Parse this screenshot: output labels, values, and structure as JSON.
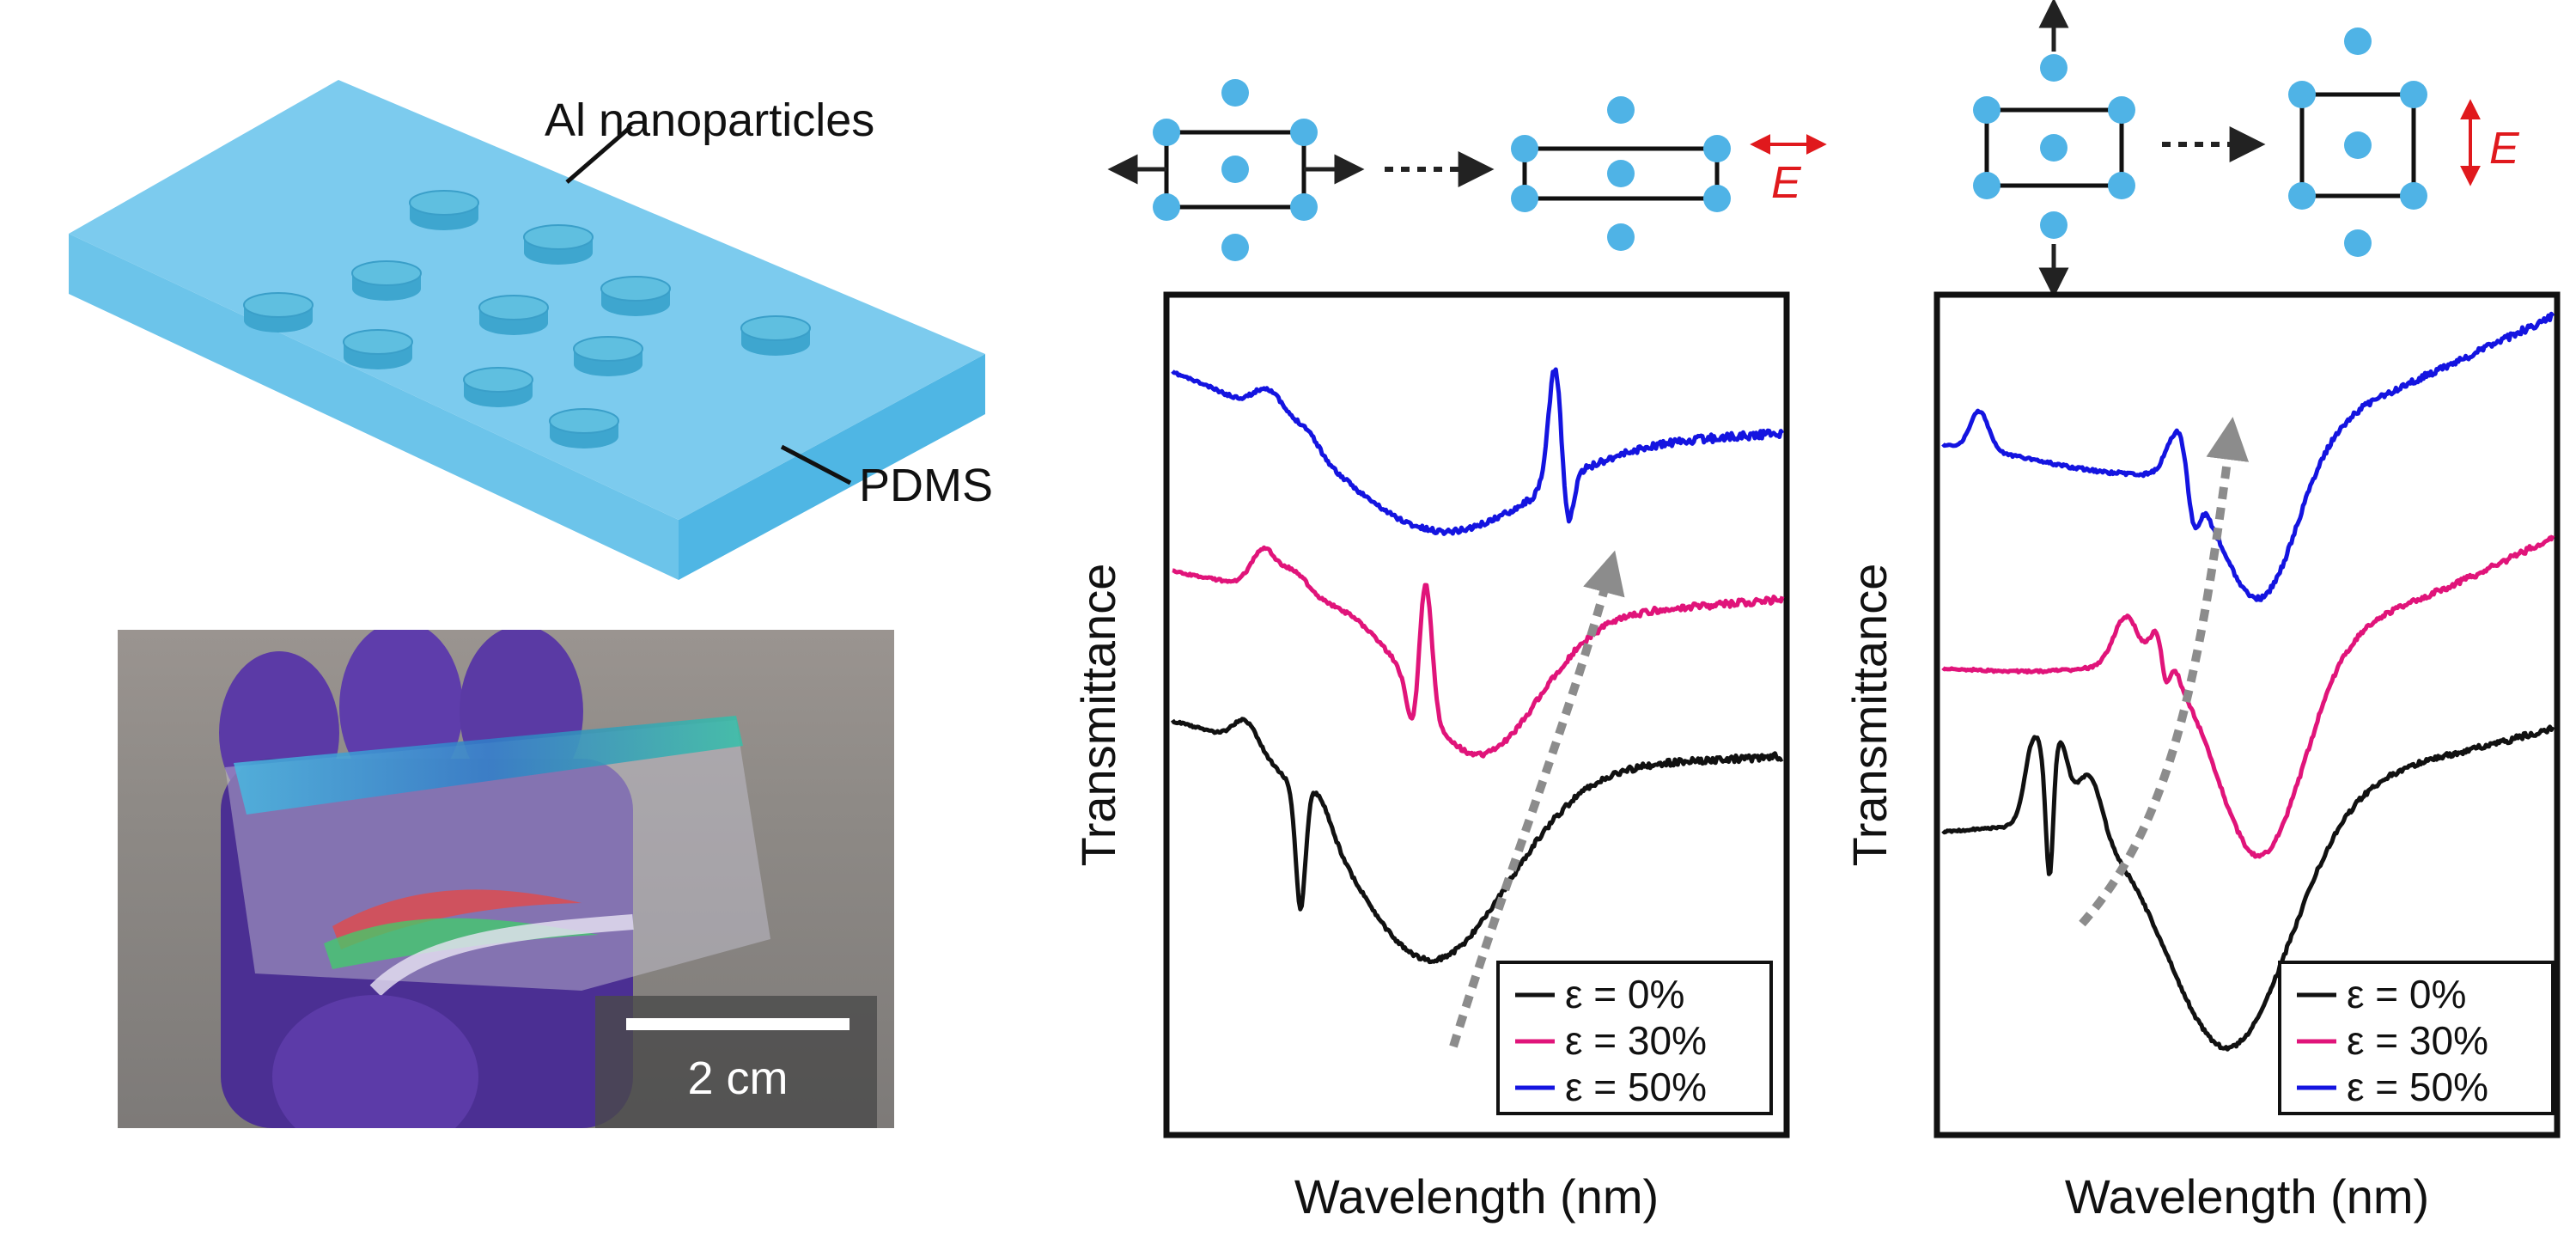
{
  "schematic": {
    "nanoparticle_label": "Al nanoparticles",
    "substrate_label": "PDMS",
    "substrate_color": "#7ccbee",
    "particle_color": "#5fbfe0"
  },
  "photo": {
    "scale_bar_label": "2 cm",
    "glove_color": "#5b3aa6"
  },
  "lattice_diagrams": {
    "dot_color": "#4fb3e6",
    "field_color": "#e0191d",
    "field_label": "E"
  },
  "chart_data": [
    {
      "type": "line",
      "panel": "left",
      "xlabel": "Wavelength (nm)",
      "ylabel": "Transmittance",
      "strain_direction": "horizontal",
      "legend_location": "lower-right",
      "grid": false,
      "tick_labels": false,
      "series": [
        {
          "name": "ε = 0%",
          "color": "#111111"
        },
        {
          "name": "ε = 30%",
          "color": "#e0147a"
        },
        {
          "name": "ε = 50%",
          "color": "#1414e0"
        }
      ]
    },
    {
      "type": "line",
      "panel": "right",
      "xlabel": "Wavelength (nm)",
      "ylabel": "Transmittance",
      "strain_direction": "vertical",
      "legend_location": "lower-right",
      "grid": false,
      "tick_labels": false,
      "series": [
        {
          "name": "ε = 0%",
          "color": "#111111"
        },
        {
          "name": "ε = 30%",
          "color": "#e0147a"
        },
        {
          "name": "ε = 50%",
          "color": "#1414e0"
        }
      ]
    }
  ]
}
